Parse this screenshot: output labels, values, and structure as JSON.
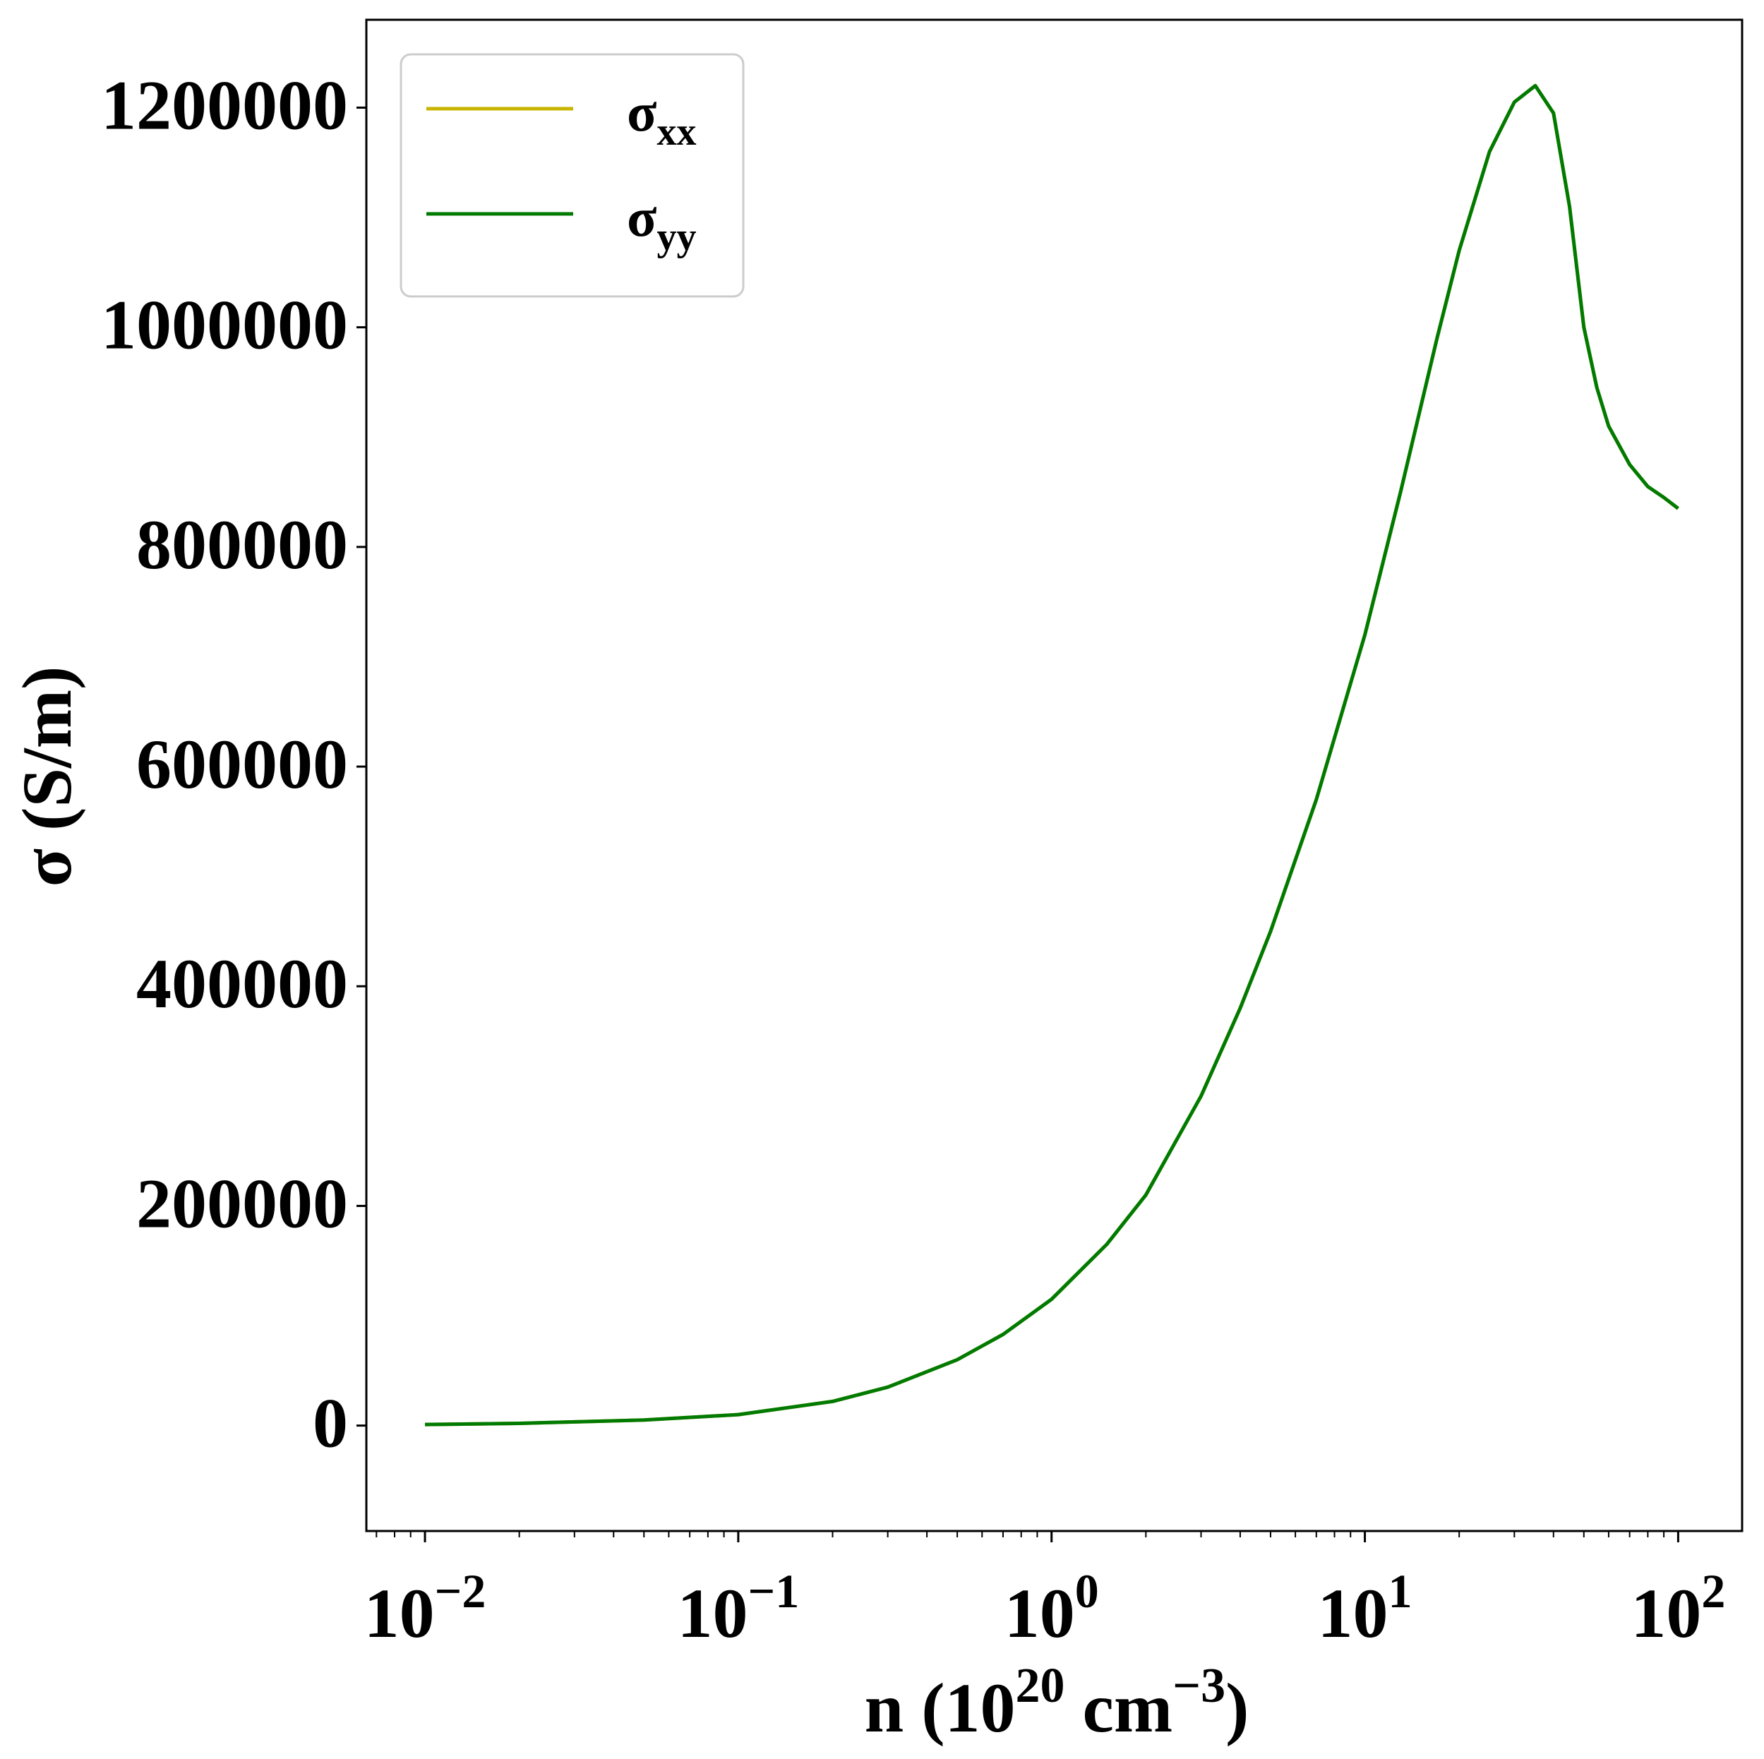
{
  "chart_data": {
    "type": "line",
    "x_scale": "log",
    "xlim": [
      0.0065,
      160
    ],
    "ylim": [
      -96000,
      1280000
    ],
    "xlabel": {
      "base": "n (10",
      "exp1": "20",
      "mid": " cm",
      "exp2": "−3",
      "end": ")"
    },
    "ylabel": "σ (S/m)",
    "yticks": [
      {
        "value": 0,
        "label": "0"
      },
      {
        "value": 200000,
        "label": "200000"
      },
      {
        "value": 400000,
        "label": "400000"
      },
      {
        "value": 600000,
        "label": "600000"
      },
      {
        "value": 800000,
        "label": "800000"
      },
      {
        "value": 1000000,
        "label": "1000000"
      },
      {
        "value": 1200000,
        "label": "1200000"
      }
    ],
    "xticks": [
      {
        "value": 0.01,
        "base": "10",
        "exp": "−2"
      },
      {
        "value": 0.1,
        "base": "10",
        "exp": "−1"
      },
      {
        "value": 1,
        "base": "10",
        "exp": "0"
      },
      {
        "value": 10,
        "base": "10",
        "exp": "1"
      },
      {
        "value": 100,
        "base": "10",
        "exp": "2"
      }
    ],
    "legend": {
      "placement": "top-left",
      "entries": [
        {
          "base": "σ",
          "sub": "xx",
          "color": "#c8b400"
        },
        {
          "base": "σ",
          "sub": "yy",
          "color": "#007a00"
        }
      ]
    },
    "grid": false,
    "series": [
      {
        "name": "σxx",
        "color": "#c8b400",
        "x": [
          0.01,
          0.02,
          0.05,
          0.1,
          0.2,
          0.3,
          0.5,
          0.7,
          1,
          1.5,
          2,
          3,
          4,
          5,
          7,
          10,
          13,
          17,
          20,
          25,
          30,
          35,
          40,
          45,
          50,
          55,
          60,
          70,
          80,
          90,
          100
        ],
        "y": [
          1000,
          2000,
          5000,
          10000,
          22000,
          35000,
          60000,
          83000,
          115000,
          165000,
          210000,
          300000,
          380000,
          450000,
          570000,
          720000,
          850000,
          990000,
          1070000,
          1160000,
          1205000,
          1220000,
          1195000,
          1110000,
          1000000,
          945000,
          910000,
          875000,
          855000,
          845000,
          835000
        ]
      },
      {
        "name": "σyy",
        "color": "#007a00",
        "x": [
          0.01,
          0.02,
          0.05,
          0.1,
          0.2,
          0.3,
          0.5,
          0.7,
          1,
          1.5,
          2,
          3,
          4,
          5,
          7,
          10,
          13,
          17,
          20,
          25,
          30,
          35,
          40,
          45,
          50,
          55,
          60,
          70,
          80,
          90,
          100
        ],
        "y": [
          1000,
          2000,
          5000,
          10000,
          22000,
          35000,
          60000,
          83000,
          115000,
          165000,
          210000,
          300000,
          380000,
          450000,
          570000,
          720000,
          850000,
          990000,
          1070000,
          1160000,
          1205000,
          1220000,
          1195000,
          1110000,
          1000000,
          945000,
          910000,
          875000,
          855000,
          845000,
          835000
        ]
      }
    ]
  }
}
